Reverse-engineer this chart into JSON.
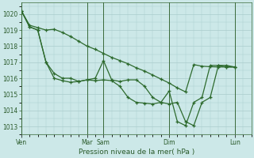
{
  "bg_color": "#cce8e8",
  "grid_color": "#aacccc",
  "line_color": "#2d6a2d",
  "xlabel": "Pression niveau de la mer( hPa )",
  "ylim": [
    1012.5,
    1020.7
  ],
  "yticks": [
    1013,
    1014,
    1015,
    1016,
    1017,
    1018,
    1019,
    1020
  ],
  "xtick_labels": [
    "Ven",
    "Mar",
    "Sam",
    "Dim",
    "Lun"
  ],
  "xtick_positions": [
    0,
    4,
    5,
    9,
    13
  ],
  "xlim": [
    0,
    14
  ],
  "vlines": [
    0,
    4,
    5,
    9,
    13
  ],
  "series1": [
    [
      0.0,
      1020.2
    ],
    [
      0.5,
      1019.3
    ],
    [
      1.0,
      1019.15
    ],
    [
      1.5,
      1019.0
    ],
    [
      2.0,
      1019.05
    ],
    [
      2.5,
      1018.85
    ],
    [
      3.0,
      1018.6
    ],
    [
      3.5,
      1018.3
    ],
    [
      4.0,
      1018.0
    ],
    [
      4.5,
      1017.8
    ],
    [
      5.0,
      1017.55
    ],
    [
      5.5,
      1017.3
    ],
    [
      6.0,
      1017.1
    ],
    [
      6.5,
      1016.9
    ],
    [
      7.0,
      1016.65
    ],
    [
      7.5,
      1016.45
    ],
    [
      8.0,
      1016.2
    ],
    [
      8.5,
      1015.95
    ],
    [
      9.0,
      1015.7
    ],
    [
      9.5,
      1015.4
    ],
    [
      10.0,
      1015.15
    ],
    [
      10.5,
      1016.85
    ],
    [
      11.0,
      1016.75
    ],
    [
      11.5,
      1016.72
    ],
    [
      12.0,
      1016.7
    ],
    [
      12.5,
      1016.7
    ],
    [
      13.0,
      1016.7
    ]
  ],
  "series2": [
    [
      0.0,
      1020.2
    ],
    [
      0.5,
      1019.2
    ],
    [
      1.0,
      1019.0
    ],
    [
      1.5,
      1017.0
    ],
    [
      2.0,
      1016.3
    ],
    [
      2.5,
      1016.0
    ],
    [
      3.0,
      1016.0
    ],
    [
      3.5,
      1015.8
    ],
    [
      4.0,
      1015.9
    ],
    [
      4.5,
      1016.0
    ],
    [
      5.0,
      1017.1
    ],
    [
      5.5,
      1015.9
    ],
    [
      6.0,
      1015.8
    ],
    [
      6.5,
      1015.9
    ],
    [
      7.0,
      1015.9
    ],
    [
      7.5,
      1015.5
    ],
    [
      8.0,
      1014.8
    ],
    [
      8.5,
      1014.5
    ],
    [
      9.0,
      1014.4
    ],
    [
      9.5,
      1014.5
    ],
    [
      10.0,
      1013.3
    ],
    [
      10.5,
      1013.05
    ],
    [
      11.0,
      1014.5
    ],
    [
      11.5,
      1014.8
    ],
    [
      12.0,
      1016.8
    ],
    [
      12.5,
      1016.8
    ],
    [
      13.0,
      1016.7
    ]
  ],
  "series3": [
    [
      0.0,
      1020.2
    ],
    [
      0.5,
      1019.2
    ],
    [
      1.0,
      1019.0
    ],
    [
      1.5,
      1017.0
    ],
    [
      2.0,
      1016.0
    ],
    [
      2.5,
      1015.85
    ],
    [
      3.0,
      1015.75
    ],
    [
      3.5,
      1015.8
    ],
    [
      4.0,
      1015.9
    ],
    [
      4.5,
      1015.85
    ],
    [
      5.0,
      1015.9
    ],
    [
      5.5,
      1015.85
    ],
    [
      6.0,
      1015.5
    ],
    [
      6.5,
      1014.8
    ],
    [
      7.0,
      1014.5
    ],
    [
      7.5,
      1014.45
    ],
    [
      8.0,
      1014.4
    ],
    [
      8.5,
      1014.5
    ],
    [
      9.0,
      1015.2
    ],
    [
      9.5,
      1013.3
    ],
    [
      10.0,
      1013.05
    ],
    [
      10.5,
      1014.5
    ],
    [
      11.0,
      1014.8
    ],
    [
      11.5,
      1016.8
    ],
    [
      12.0,
      1016.8
    ],
    [
      12.5,
      1016.7
    ],
    [
      13.0,
      1016.7
    ]
  ]
}
